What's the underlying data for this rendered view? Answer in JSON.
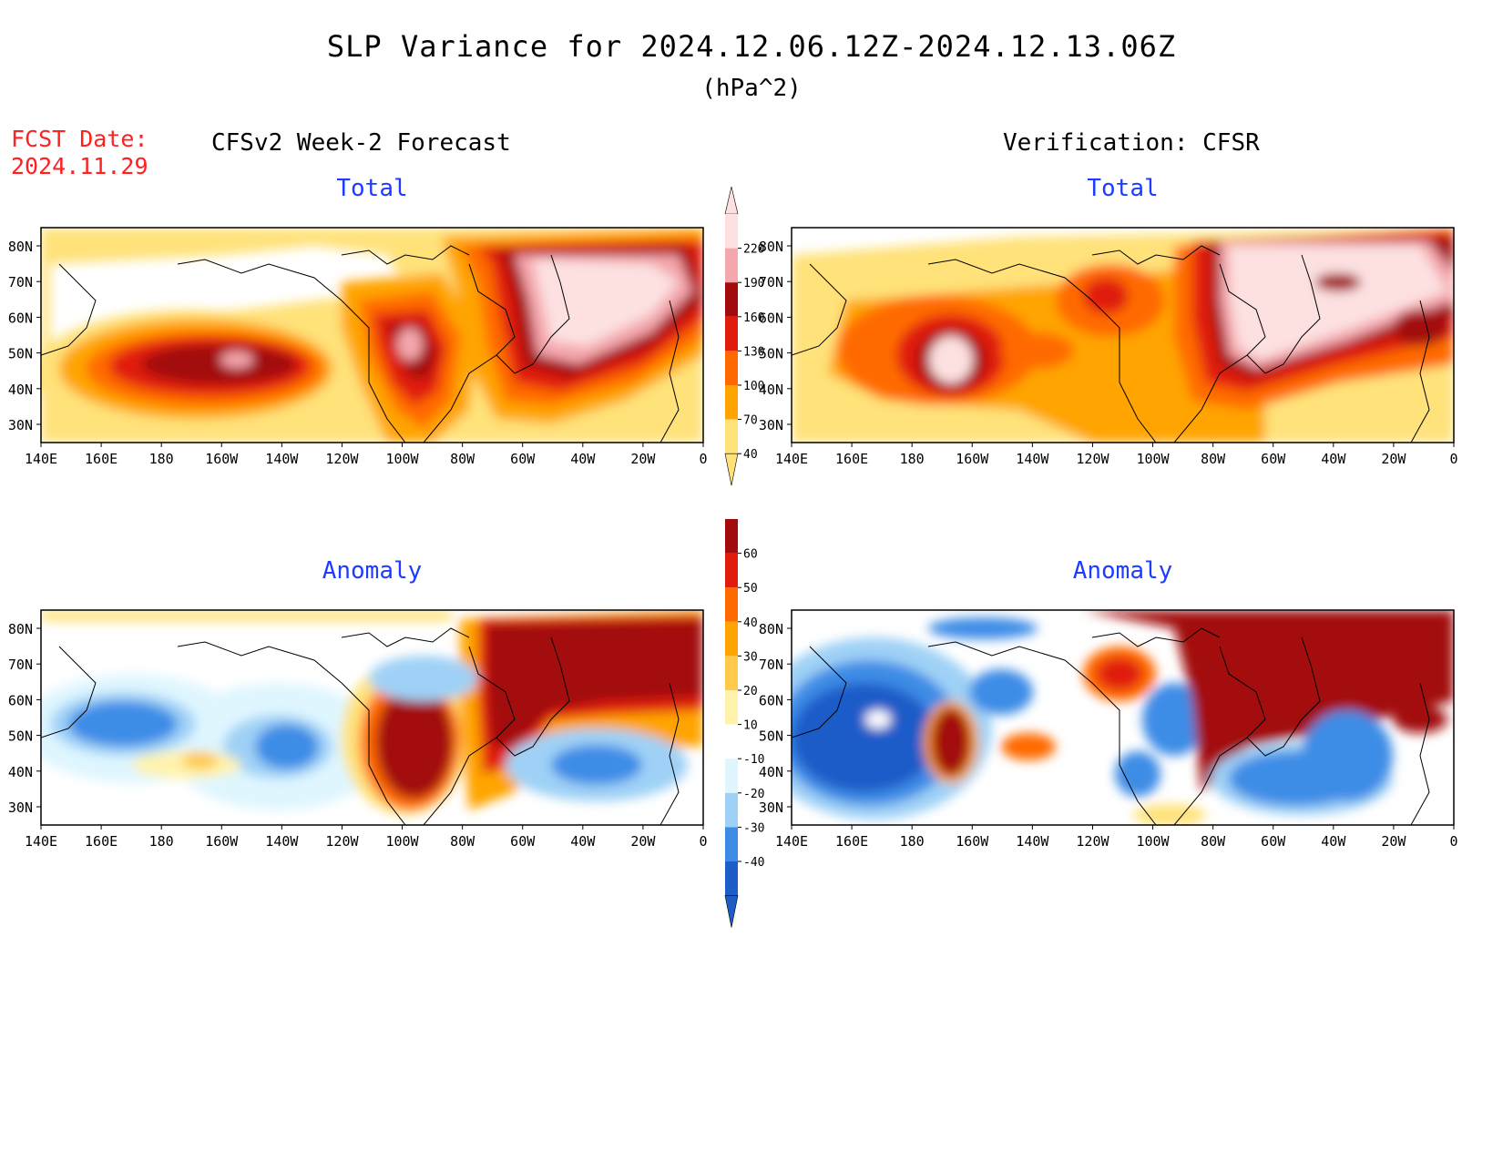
{
  "header": {
    "title": "SLP Variance for 2024.12.06.12Z-2024.12.13.06Z",
    "units": "(hPa^2)",
    "fcst_label": "FCST Date:",
    "fcst_date": "2024.11.29"
  },
  "columns": {
    "left": "CFSv2 Week-2 Forecast",
    "right": "Verification: CFSR"
  },
  "panels": {
    "total": "Total",
    "anomaly": "Anomaly"
  },
  "axes": {
    "lat_labels": [
      "80N",
      "70N",
      "60N",
      "50N",
      "40N",
      "30N"
    ],
    "lon_labels": [
      "140E",
      "160E",
      "180",
      "160W",
      "140W",
      "120W",
      "100W",
      "80W",
      "60W",
      "40W",
      "20W",
      "0"
    ]
  },
  "colorbars": {
    "total": {
      "levels": [
        "220",
        "190",
        "160",
        "130",
        "100",
        "70",
        "40"
      ],
      "colors": [
        "#fde1e1",
        "#f4a7ad",
        "#a30c0c",
        "#e01d0d",
        "#ff6a00",
        "#ffa400",
        "#ffe27a"
      ]
    },
    "anomaly": {
      "levels": [
        "60",
        "50",
        "40",
        "30",
        "20",
        "10",
        "-10",
        "-20",
        "-30",
        "-40"
      ],
      "colors": [
        "#a30c0c",
        "#e01d0d",
        "#ff6a00",
        "#ffa400",
        "#ffc94a",
        "#fff3ac",
        "#ffffff",
        "#dff6ff",
        "#9fd1f6",
        "#3c8ce6",
        "#1e5cc8"
      ]
    }
  }
}
